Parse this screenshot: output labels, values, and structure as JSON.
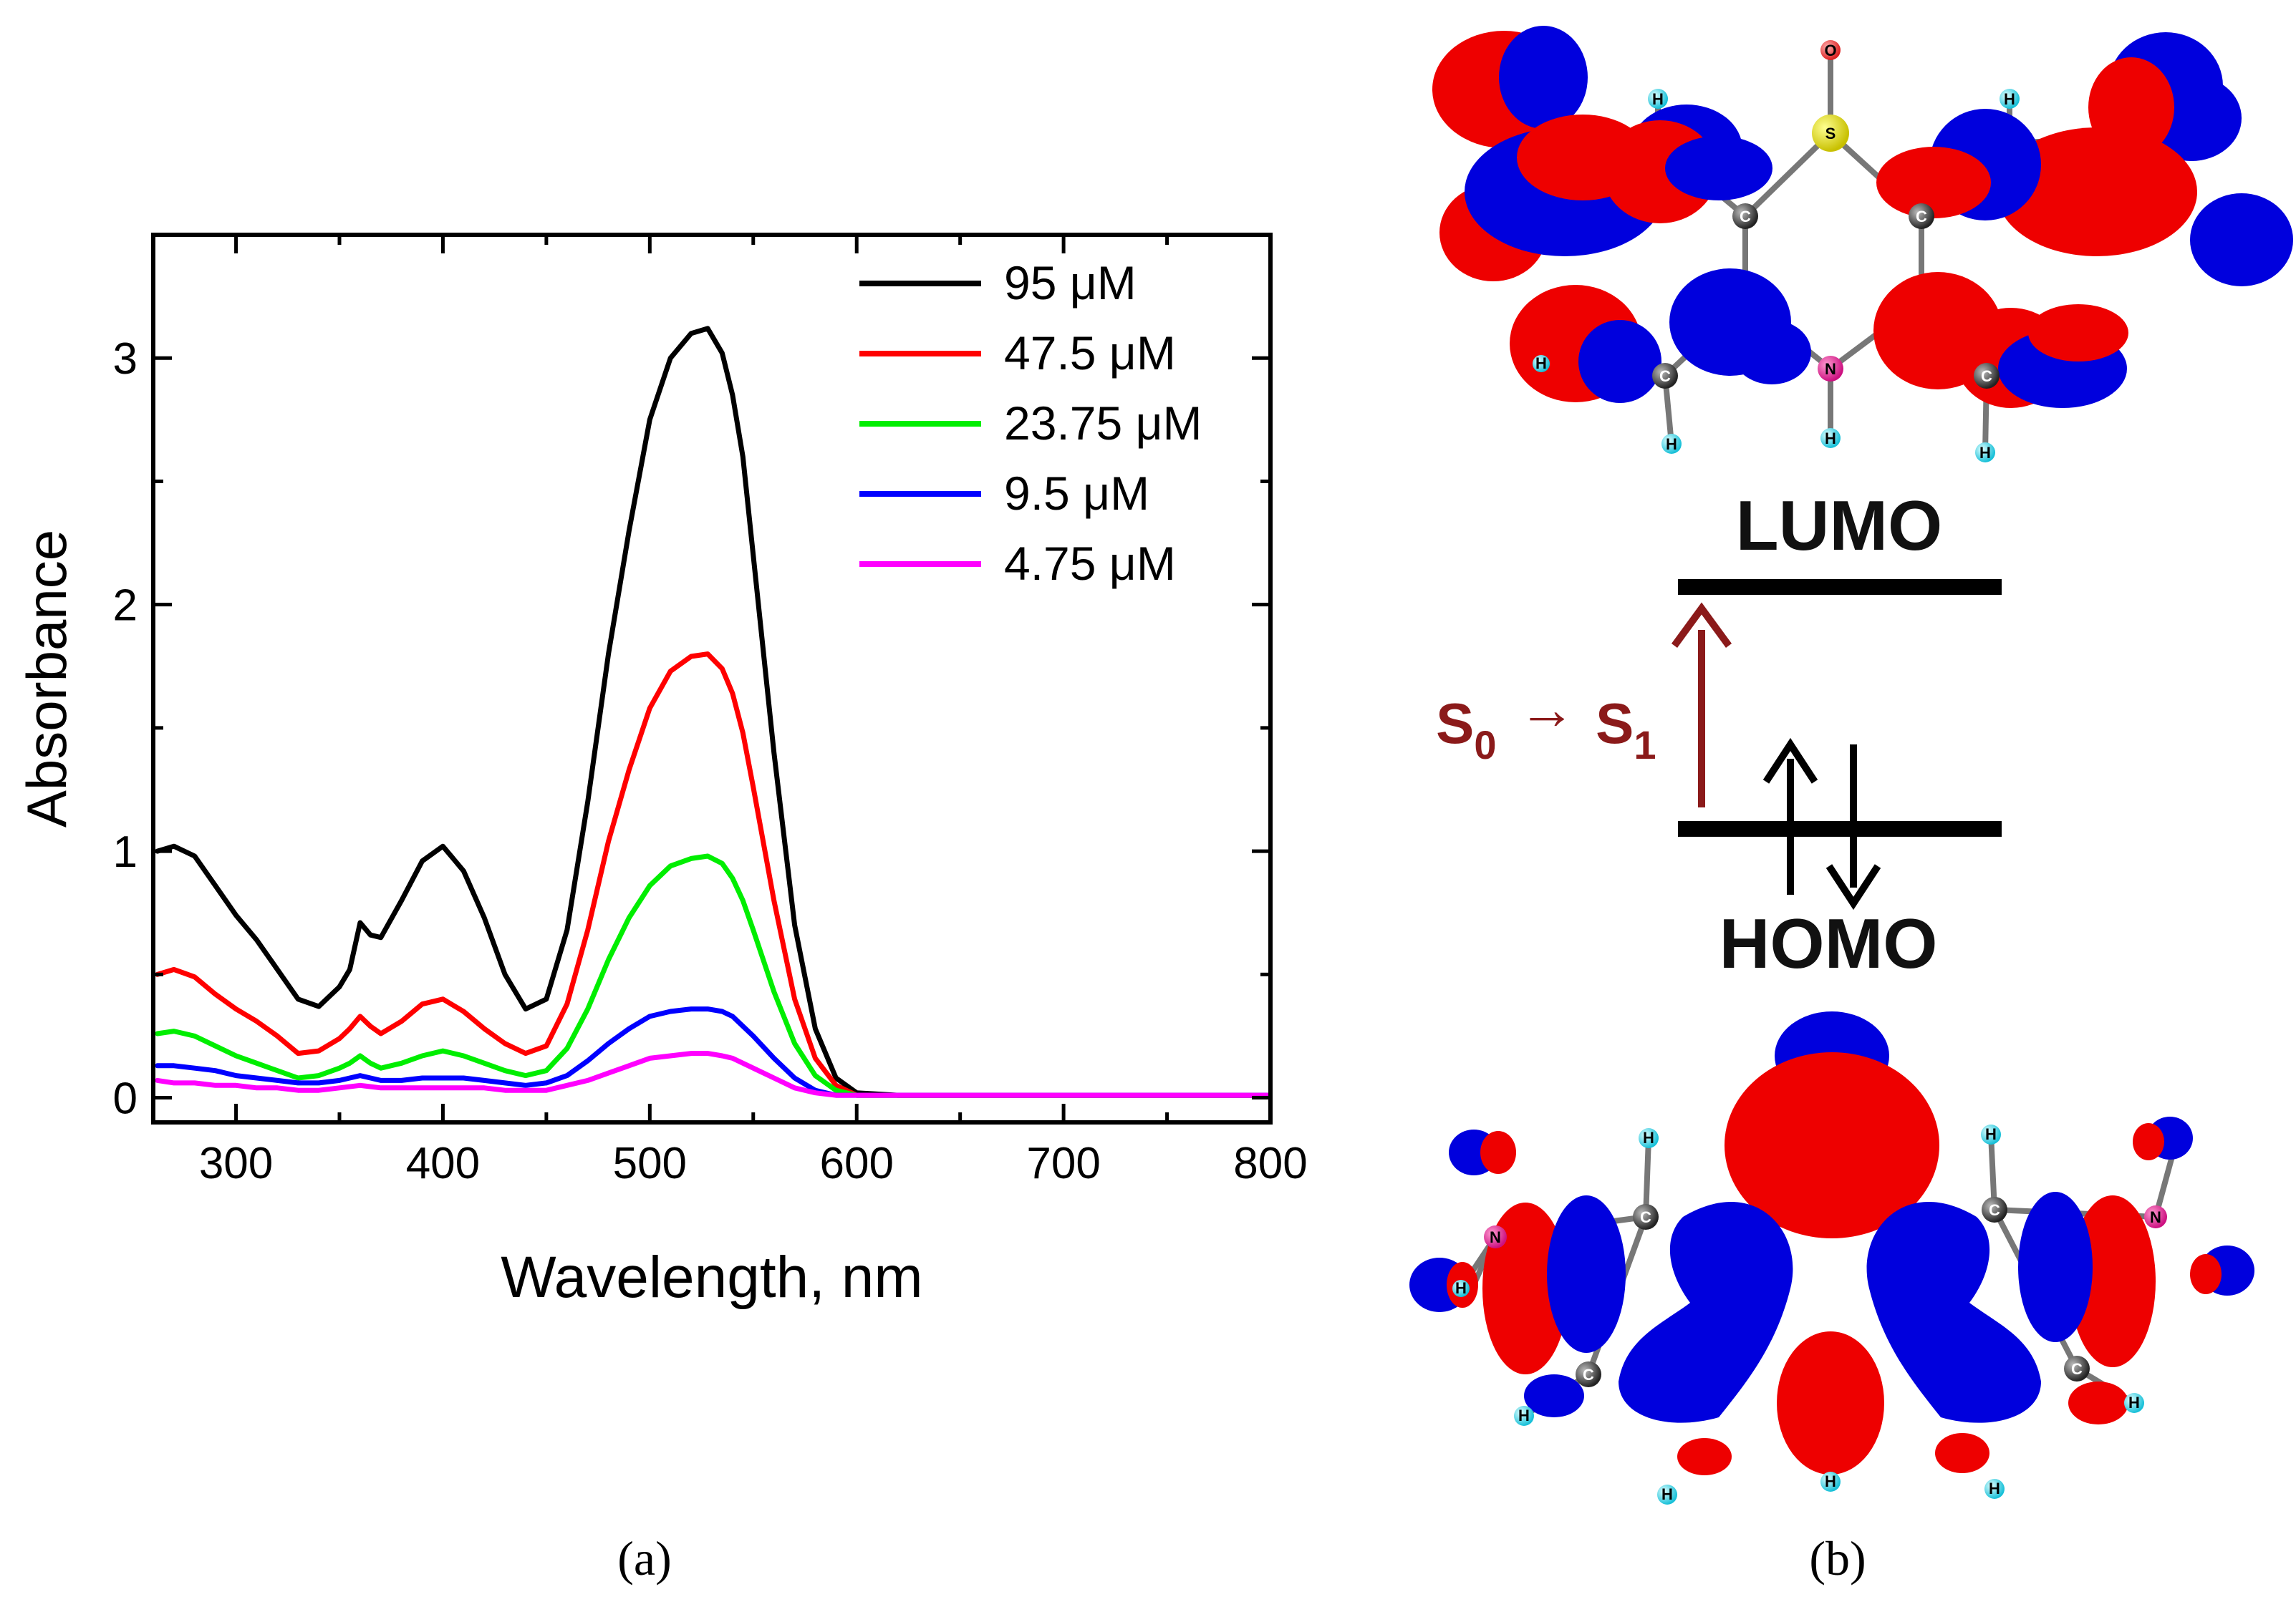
{
  "chart_data": {
    "type": "line",
    "title": "",
    "xlabel": "Wavelength, nm",
    "ylabel": "Absorbance",
    "xlim": [
      260,
      800
    ],
    "ylim": [
      -0.1,
      3.5
    ],
    "x_ticks": [
      300,
      400,
      500,
      600,
      700,
      800
    ],
    "y_ticks": [
      0,
      1,
      2,
      3
    ],
    "legend_position": "top-right",
    "grid": false,
    "series": [
      {
        "name": "95 μM",
        "color": "#000000",
        "x": [
          262,
          270,
          280,
          290,
          300,
          310,
          320,
          330,
          340,
          350,
          355,
          360,
          365,
          370,
          380,
          390,
          400,
          410,
          420,
          430,
          440,
          450,
          460,
          470,
          480,
          490,
          500,
          510,
          520,
          528,
          535,
          540,
          545,
          550,
          560,
          570,
          580,
          590,
          600,
          620,
          650,
          700,
          750,
          800
        ],
        "y": [
          1.0,
          1.02,
          0.98,
          0.86,
          0.74,
          0.64,
          0.52,
          0.4,
          0.37,
          0.45,
          0.52,
          0.71,
          0.66,
          0.65,
          0.8,
          0.96,
          1.02,
          0.92,
          0.73,
          0.5,
          0.36,
          0.4,
          0.68,
          1.2,
          1.8,
          2.3,
          2.75,
          3.0,
          3.1,
          3.12,
          3.02,
          2.85,
          2.6,
          2.2,
          1.4,
          0.7,
          0.28,
          0.08,
          0.02,
          0.01,
          0.01,
          0.01,
          0.01,
          0.01
        ]
      },
      {
        "name": "47.5 μM",
        "color": "#ff0000",
        "x": [
          262,
          270,
          280,
          290,
          300,
          310,
          320,
          330,
          340,
          350,
          355,
          360,
          365,
          370,
          380,
          390,
          400,
          410,
          420,
          430,
          440,
          450,
          460,
          470,
          480,
          490,
          500,
          510,
          520,
          528,
          535,
          540,
          545,
          550,
          560,
          570,
          580,
          590,
          600,
          620,
          650,
          700,
          750,
          800
        ],
        "y": [
          0.5,
          0.52,
          0.49,
          0.42,
          0.36,
          0.31,
          0.25,
          0.18,
          0.19,
          0.24,
          0.28,
          0.33,
          0.29,
          0.26,
          0.31,
          0.38,
          0.4,
          0.35,
          0.28,
          0.22,
          0.18,
          0.21,
          0.38,
          0.68,
          1.04,
          1.33,
          1.58,
          1.73,
          1.79,
          1.8,
          1.74,
          1.64,
          1.48,
          1.26,
          0.8,
          0.4,
          0.16,
          0.05,
          0.01,
          0.01,
          0.01,
          0.01,
          0.01,
          0.01
        ]
      },
      {
        "name": "23.75 μM",
        "color": "#00ee00",
        "x": [
          262,
          270,
          280,
          290,
          300,
          310,
          320,
          330,
          340,
          350,
          355,
          360,
          365,
          370,
          380,
          390,
          400,
          410,
          420,
          430,
          440,
          450,
          460,
          470,
          480,
          490,
          500,
          510,
          520,
          528,
          535,
          540,
          545,
          550,
          560,
          570,
          580,
          590,
          600,
          620,
          650,
          700,
          750,
          800
        ],
        "y": [
          0.26,
          0.27,
          0.25,
          0.21,
          0.17,
          0.14,
          0.11,
          0.08,
          0.09,
          0.12,
          0.14,
          0.17,
          0.14,
          0.12,
          0.14,
          0.17,
          0.19,
          0.17,
          0.14,
          0.11,
          0.09,
          0.11,
          0.2,
          0.36,
          0.56,
          0.73,
          0.86,
          0.94,
          0.97,
          0.98,
          0.95,
          0.89,
          0.8,
          0.68,
          0.43,
          0.22,
          0.09,
          0.03,
          0.01,
          0.01,
          0.01,
          0.01,
          0.01,
          0.01
        ]
      },
      {
        "name": "9.5 μM",
        "color": "#0000ff",
        "x": [
          262,
          270,
          280,
          290,
          300,
          310,
          320,
          330,
          340,
          350,
          360,
          370,
          380,
          390,
          400,
          410,
          420,
          430,
          440,
          450,
          460,
          470,
          480,
          490,
          500,
          510,
          520,
          528,
          535,
          540,
          550,
          560,
          570,
          580,
          590,
          600,
          620,
          650,
          700,
          750,
          800
        ],
        "y": [
          0.13,
          0.13,
          0.12,
          0.11,
          0.09,
          0.08,
          0.07,
          0.06,
          0.06,
          0.07,
          0.09,
          0.07,
          0.07,
          0.08,
          0.08,
          0.08,
          0.07,
          0.06,
          0.05,
          0.06,
          0.09,
          0.15,
          0.22,
          0.28,
          0.33,
          0.35,
          0.36,
          0.36,
          0.35,
          0.33,
          0.25,
          0.16,
          0.08,
          0.03,
          0.01,
          0.01,
          0.01,
          0.01,
          0.01,
          0.01,
          0.01
        ]
      },
      {
        "name": "4.75 μM",
        "color": "#ff00ff",
        "x": [
          262,
          270,
          280,
          290,
          300,
          310,
          320,
          330,
          340,
          350,
          360,
          370,
          380,
          390,
          400,
          410,
          420,
          430,
          440,
          450,
          460,
          470,
          480,
          490,
          500,
          510,
          520,
          528,
          535,
          540,
          550,
          560,
          570,
          580,
          590,
          600,
          620,
          650,
          700,
          750,
          800
        ],
        "y": [
          0.07,
          0.06,
          0.06,
          0.05,
          0.05,
          0.04,
          0.04,
          0.03,
          0.03,
          0.04,
          0.05,
          0.04,
          0.04,
          0.04,
          0.04,
          0.04,
          0.04,
          0.03,
          0.03,
          0.03,
          0.05,
          0.07,
          0.1,
          0.13,
          0.16,
          0.17,
          0.18,
          0.18,
          0.17,
          0.16,
          0.12,
          0.08,
          0.04,
          0.02,
          0.01,
          0.01,
          0.01,
          0.01,
          0.01,
          0.01,
          0.01
        ]
      }
    ]
  },
  "panel_a": {
    "label": "(a)"
  },
  "panel_b": {
    "label": "(b)",
    "lumo_label": "LUMO",
    "homo_label": "HOMO",
    "transition": {
      "from_main": "S",
      "from_sub": "0",
      "arrow": "→",
      "to_main": "S",
      "to_sub": "1"
    },
    "lumo_atoms": [
      "O",
      "S",
      "C",
      "C",
      "N",
      "C",
      "C",
      "H",
      "H",
      "H",
      "H",
      "H",
      "H"
    ],
    "homo_atoms": [
      "N",
      "N",
      "C",
      "C",
      "C",
      "C",
      "H",
      "H",
      "H",
      "H",
      "H",
      "H",
      "H",
      "H"
    ],
    "colors": {
      "positive_lobe": "#ee0000",
      "negative_lobe": "#0000dd",
      "transition": "#8b1a1a"
    }
  }
}
